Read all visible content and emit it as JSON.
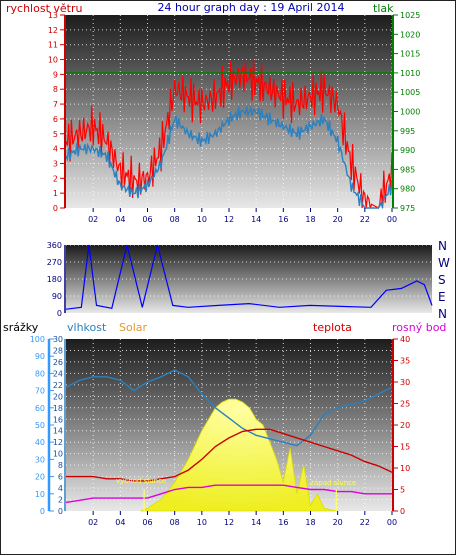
{
  "title": "24 hour graph day : 19 April 2014",
  "chart_data": [
    {
      "type": "line",
      "name_left": "rychlost větru",
      "name_right": "tlak",
      "ylim_left": [
        0,
        13
      ],
      "ylim_right": [
        975,
        1025
      ],
      "yticks_left": [
        0,
        1,
        2,
        3,
        4,
        5,
        6,
        7,
        8,
        9,
        10,
        11,
        12,
        13
      ],
      "yticks_right": [
        975,
        980,
        985,
        990,
        995,
        1000,
        1005,
        1010,
        1015,
        1020,
        1025
      ],
      "xticks": [
        "02",
        "04",
        "06",
        "08",
        "10",
        "12",
        "14",
        "16",
        "18",
        "20",
        "22",
        "00"
      ],
      "hours": [
        0,
        1,
        2,
        3,
        4,
        5,
        6,
        7,
        8,
        9,
        10,
        11,
        12,
        13,
        14,
        15,
        16,
        17,
        18,
        19,
        20,
        21,
        22,
        23,
        24
      ],
      "series": [
        {
          "color": "#ff0000",
          "values": [
            4.5,
            5.0,
            5.5,
            4.5,
            2.5,
            1.8,
            2.0,
            4.0,
            8.0,
            7.5,
            7.0,
            7.5,
            8.5,
            9.0,
            8.5,
            8.0,
            7.5,
            7.0,
            7.5,
            8.0,
            7.0,
            3.0,
            0.5,
            0.0,
            2.5
          ]
        },
        {
          "color": "#2a80c0",
          "values": [
            3.5,
            4.0,
            4.0,
            3.5,
            1.5,
            1.0,
            1.5,
            3.0,
            6.0,
            5.0,
            4.5,
            5.0,
            6.0,
            6.5,
            6.5,
            6.0,
            5.5,
            5.0,
            5.5,
            6.0,
            4.5,
            1.5,
            0.0,
            0.0,
            1.5
          ]
        },
        {
          "color": "#008000",
          "axis": "right",
          "values": [
            1010,
            1010,
            1010,
            1010,
            1010,
            1010,
            1010,
            1010,
            1010,
            1010,
            1010,
            1010,
            1010,
            1010,
            1010,
            1010,
            1010,
            1010,
            1010,
            1010,
            1010,
            1010,
            1010,
            1010,
            1010
          ]
        }
      ]
    },
    {
      "type": "line",
      "ylim": [
        0,
        360
      ],
      "yticks": [
        0,
        90,
        180,
        270,
        360
      ],
      "yticks_right": [
        "N",
        "E",
        "S",
        "W",
        "N"
      ],
      "series": [
        {
          "color": "#0000ff",
          "x": [
            0,
            1,
            1.5,
            2,
            3,
            4,
            5,
            6,
            7,
            8,
            10,
            12,
            14,
            16,
            18,
            20,
            21,
            22,
            23,
            23.5,
            24
          ],
          "values": [
            20,
            30,
            360,
            40,
            25,
            360,
            30,
            360,
            40,
            30,
            40,
            50,
            30,
            40,
            35,
            30,
            120,
            130,
            170,
            150,
            40
          ]
        }
      ]
    },
    {
      "type": "line",
      "name_srazky": "srážky",
      "name_vlhkost": "vlhkost",
      "name_solar": "Solar",
      "name_teplota": "teplota",
      "name_rosny": "rosný bod",
      "ylim_srazky": [
        0,
        100
      ],
      "yticks_srazky": [
        0,
        10,
        20,
        30,
        40,
        50,
        60,
        70,
        80,
        90,
        100
      ],
      "ylim_vlhkost": [
        0,
        30
      ],
      "yticks_vlhkost": [
        0,
        2,
        4,
        6,
        8,
        10,
        12,
        14,
        16,
        18,
        20,
        22,
        24,
        26,
        28,
        30
      ],
      "ylim_right": [
        0,
        40
      ],
      "yticks_right": [
        0,
        5,
        10,
        15,
        20,
        25,
        30,
        35,
        40
      ],
      "annotation_sunrise": "východ slunce",
      "annotation_sunset": "západ slunce",
      "sunrise_hour": 5.75,
      "sunset_hour": 19.9,
      "series": [
        {
          "name": "vlhkost",
          "color": "#2a80c0",
          "axis": "left",
          "hours": [
            0,
            1,
            2,
            3,
            4,
            5,
            6,
            7,
            8,
            9,
            10,
            11,
            12,
            13,
            14,
            15,
            16,
            17,
            18,
            19,
            20,
            21,
            22,
            23,
            24
          ],
          "values": [
            72,
            76,
            78,
            78,
            76,
            70,
            75,
            78,
            82,
            78,
            68,
            60,
            54,
            48,
            44,
            42,
            40,
            38,
            44,
            56,
            60,
            62,
            64,
            68,
            72
          ]
        },
        {
          "name": "teplota",
          "color": "#cc0000",
          "axis": "right",
          "hours": [
            0,
            1,
            2,
            3,
            4,
            5,
            6,
            7,
            8,
            9,
            10,
            11,
            12,
            13,
            14,
            15,
            16,
            17,
            18,
            19,
            20,
            21,
            22,
            23,
            24
          ],
          "values": [
            8,
            8,
            8,
            7.5,
            7.5,
            7,
            7,
            7.5,
            8,
            9.5,
            12,
            15,
            17,
            18.5,
            19,
            19,
            18,
            17,
            16,
            15,
            14,
            13,
            11.5,
            10.5,
            9
          ]
        },
        {
          "name": "rosný bod",
          "color": "#dd00dd",
          "axis": "right",
          "hours": [
            0,
            1,
            2,
            3,
            4,
            5,
            6,
            7,
            8,
            9,
            10,
            11,
            12,
            13,
            14,
            15,
            16,
            17,
            18,
            19,
            20,
            21,
            22,
            23,
            24
          ],
          "values": [
            2,
            2.5,
            3,
            3,
            3,
            3,
            3,
            4,
            5,
            5.5,
            5.5,
            6,
            6,
            6,
            6,
            6,
            6,
            5.5,
            5,
            5,
            4.5,
            4.5,
            4,
            4,
            4
          ]
        },
        {
          "name": "Solar",
          "color": "#ffff33",
          "axis": "vlhkost",
          "hours": [
            5.5,
            6,
            7,
            8,
            9,
            10,
            10.5,
            11,
            11.5,
            12,
            12.5,
            13,
            13.5,
            14,
            14.5,
            15,
            15.5,
            16,
            16.5,
            17,
            17.5,
            18,
            18.5,
            19,
            19.5,
            20
          ],
          "values": [
            0,
            0.5,
            2,
            5,
            9,
            14,
            16,
            18,
            19,
            19.5,
            19.5,
            19,
            18,
            16,
            15,
            12,
            9,
            5,
            11,
            3,
            8,
            1,
            3,
            0.5,
            0.2,
            0
          ]
        }
      ]
    }
  ]
}
